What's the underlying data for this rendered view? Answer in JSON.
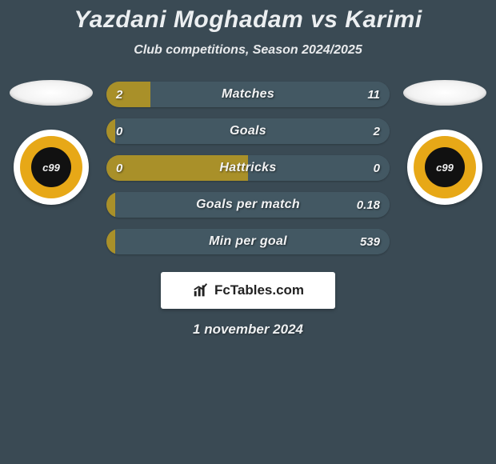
{
  "title": "Yazdani Moghadam vs Karimi",
  "subtitle": "Club competitions, Season 2024/2025",
  "date": "1 november 2024",
  "brand": "FcTables.com",
  "colors": {
    "player1": "#a99029",
    "player2": "#435863",
    "background": "#3a4a54",
    "flag": "#ffffff",
    "club_outer": "#ffffff",
    "club_ring": "#e7a817",
    "club_core": "#111111"
  },
  "club_core_text": "c99",
  "stats": [
    {
      "label": "Matches",
      "left_value": "2",
      "right_value": "11",
      "left_pct": 15.4,
      "right_pct": 84.6
    },
    {
      "label": "Goals",
      "left_value": "0",
      "right_value": "2",
      "left_pct": 3.0,
      "right_pct": 97.0
    },
    {
      "label": "Hattricks",
      "left_value": "0",
      "right_value": "0",
      "left_pct": 50.0,
      "right_pct": 50.0
    },
    {
      "label": "Goals per match",
      "left_value": "",
      "right_value": "0.18",
      "left_pct": 3.0,
      "right_pct": 97.0
    },
    {
      "label": "Min per goal",
      "left_value": "",
      "right_value": "539",
      "left_pct": 3.0,
      "right_pct": 97.0
    }
  ]
}
